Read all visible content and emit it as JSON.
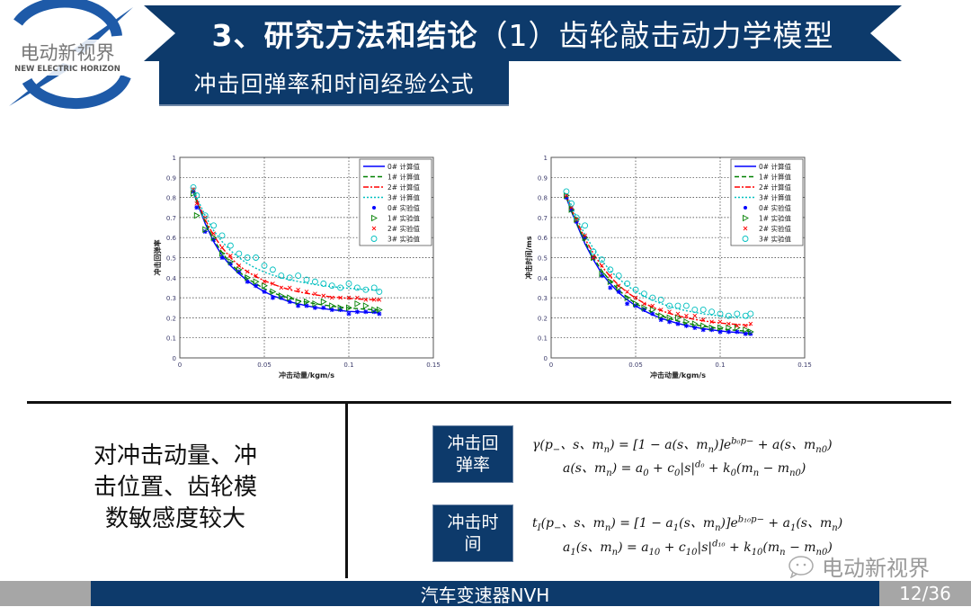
{
  "logo": {
    "cn": "电动新视界",
    "en": "NEW ELECTRIC HORIZON"
  },
  "header": {
    "title_bold": "3、研究方法和结论",
    "title_light": "（1）齿轮敲击动力学模型",
    "subtitle": "冲击回弹率和时间经验公式"
  },
  "colors": {
    "navy": "#0d3a6b",
    "gray": "#a6a6a6",
    "series_0": "#0000ff",
    "series_1": "#008000",
    "series_2": "#ff0000",
    "series_3": "#00bfbf"
  },
  "conclusion": {
    "lines": [
      "对冲击动量、冲",
      "击位置、齿轮模",
      "数敏感度较大"
    ]
  },
  "formulas": {
    "box1_line1": "冲击回",
    "box1_line2": "弹率",
    "box2_line1": "冲击时",
    "box2_line2": "间"
  },
  "watermark": "电动新视界",
  "footer": {
    "title": "汽车变速器NVH",
    "page": "12/36"
  },
  "chart_data": [
    {
      "type": "line",
      "title": "",
      "xlabel": "冲击动量/kgm/s",
      "ylabel": "冲击回弹率",
      "xlim": [
        0,
        0.15
      ],
      "ylim": [
        0,
        1
      ],
      "xticks": [
        "0",
        "0.05",
        "0.1",
        "0.15"
      ],
      "yticks": [
        "0",
        "0.1",
        "0.2",
        "0.3",
        "0.4",
        "0.5",
        "0.6",
        "0.7",
        "0.8",
        "0.9",
        "1"
      ],
      "grid": true,
      "legend_position": "upper right",
      "legend": [
        "0# 计算值",
        "1# 计算值",
        "2# 计算值",
        "3# 计算值",
        "0# 实验值",
        "1# 实验值",
        "2# 实验值",
        "3# 实验值"
      ],
      "x": [
        0.008,
        0.01,
        0.015,
        0.02,
        0.025,
        0.03,
        0.035,
        0.04,
        0.045,
        0.05,
        0.055,
        0.06,
        0.065,
        0.07,
        0.075,
        0.08,
        0.085,
        0.09,
        0.095,
        0.1,
        0.105,
        0.11,
        0.115,
        0.118
      ],
      "series": [
        {
          "name": "0# 计算值",
          "style": "solid",
          "values": [
            0.83,
            0.78,
            0.67,
            0.58,
            0.51,
            0.46,
            0.42,
            0.385,
            0.355,
            0.33,
            0.31,
            0.295,
            0.28,
            0.27,
            0.26,
            0.252,
            0.246,
            0.24,
            0.236,
            0.232,
            0.23,
            0.228,
            0.226,
            0.225
          ]
        },
        {
          "name": "1# 计算值",
          "style": "dashed",
          "values": [
            0.83,
            0.78,
            0.68,
            0.59,
            0.525,
            0.47,
            0.43,
            0.395,
            0.37,
            0.345,
            0.325,
            0.31,
            0.298,
            0.287,
            0.278,
            0.27,
            0.264,
            0.258,
            0.253,
            0.249,
            0.246,
            0.243,
            0.24,
            0.238
          ]
        },
        {
          "name": "2# 计算值",
          "style": "dashdot",
          "values": [
            0.84,
            0.79,
            0.69,
            0.61,
            0.55,
            0.5,
            0.46,
            0.43,
            0.405,
            0.385,
            0.368,
            0.353,
            0.34,
            0.33,
            0.322,
            0.315,
            0.309,
            0.304,
            0.3,
            0.297,
            0.294,
            0.292,
            0.29,
            0.289
          ]
        },
        {
          "name": "3# 计算值",
          "style": "dotted",
          "values": [
            0.85,
            0.8,
            0.71,
            0.635,
            0.58,
            0.535,
            0.5,
            0.47,
            0.447,
            0.428,
            0.413,
            0.4,
            0.39,
            0.381,
            0.373,
            0.366,
            0.36,
            0.355,
            0.351,
            0.347,
            0.344,
            0.341,
            0.338,
            0.336
          ]
        },
        {
          "name": "0# 实验值",
          "style": "marker-star",
          "values": [
            0.83,
            0.75,
            0.63,
            0.59,
            0.5,
            0.47,
            0.43,
            0.38,
            0.36,
            0.33,
            0.3,
            0.3,
            0.28,
            0.26,
            0.26,
            0.25,
            0.25,
            0.24,
            0.24,
            0.22,
            0.23,
            0.23,
            0.23,
            0.22
          ]
        },
        {
          "name": "1# 实验值",
          "style": "marker-triangle",
          "values": [
            0.82,
            0.71,
            0.64,
            0.6,
            0.52,
            0.48,
            0.44,
            0.4,
            0.38,
            0.36,
            0.33,
            0.31,
            0.3,
            0.28,
            0.28,
            0.27,
            0.28,
            0.26,
            0.25,
            0.25,
            0.27,
            0.26,
            0.24,
            0.24
          ]
        },
        {
          "name": "2# 实验值",
          "style": "marker-x",
          "values": [
            0.84,
            0.77,
            0.7,
            0.62,
            0.55,
            0.51,
            0.46,
            0.43,
            0.41,
            0.38,
            0.37,
            0.35,
            0.35,
            0.34,
            0.33,
            0.32,
            0.31,
            0.3,
            0.3,
            0.3,
            0.3,
            0.29,
            0.29,
            0.29
          ]
        },
        {
          "name": "3# 实验值",
          "style": "marker-circle",
          "values": [
            0.85,
            0.81,
            0.71,
            0.66,
            0.61,
            0.56,
            0.52,
            0.5,
            0.5,
            0.46,
            0.44,
            0.41,
            0.4,
            0.41,
            0.39,
            0.38,
            0.37,
            0.36,
            0.35,
            0.37,
            0.35,
            0.34,
            0.35,
            0.33
          ]
        }
      ]
    },
    {
      "type": "line",
      "title": "",
      "xlabel": "冲击动量/kgm/s",
      "ylabel": "冲击时间/ms",
      "xlim": [
        0,
        0.15
      ],
      "ylim": [
        0,
        1
      ],
      "xticks": [
        "0",
        "0.05",
        "0.1",
        "0.15"
      ],
      "yticks": [
        "0",
        "0.1",
        "0.2",
        "0.3",
        "0.4",
        "0.5",
        "0.6",
        "0.7",
        "0.8",
        "0.9",
        "1"
      ],
      "grid": true,
      "legend_position": "upper right",
      "legend": [
        "0# 计算值",
        "1# 计算值",
        "2# 计算值",
        "3# 计算值",
        "0# 实验值",
        "1# 实验值",
        "2# 实验值",
        "3# 实验值"
      ],
      "x": [
        0.009,
        0.012,
        0.015,
        0.02,
        0.025,
        0.03,
        0.035,
        0.04,
        0.045,
        0.05,
        0.055,
        0.06,
        0.065,
        0.07,
        0.075,
        0.08,
        0.085,
        0.09,
        0.095,
        0.1,
        0.105,
        0.11,
        0.115,
        0.118
      ],
      "series": [
        {
          "name": "0# 计算值",
          "style": "solid",
          "values": [
            0.8,
            0.73,
            0.67,
            0.57,
            0.49,
            0.42,
            0.37,
            0.325,
            0.29,
            0.26,
            0.235,
            0.215,
            0.198,
            0.184,
            0.172,
            0.162,
            0.153,
            0.146,
            0.14,
            0.135,
            0.13,
            0.127,
            0.124,
            0.122
          ]
        },
        {
          "name": "1# 计算值",
          "style": "dashed",
          "values": [
            0.8,
            0.735,
            0.675,
            0.58,
            0.5,
            0.435,
            0.383,
            0.338,
            0.302,
            0.272,
            0.247,
            0.227,
            0.21,
            0.196,
            0.184,
            0.174,
            0.165,
            0.158,
            0.152,
            0.146,
            0.141,
            0.137,
            0.134,
            0.132
          ]
        },
        {
          "name": "2# 计算值",
          "style": "dashdot",
          "values": [
            0.81,
            0.745,
            0.685,
            0.595,
            0.52,
            0.457,
            0.405,
            0.362,
            0.327,
            0.298,
            0.273,
            0.253,
            0.236,
            0.222,
            0.21,
            0.2,
            0.192,
            0.185,
            0.179,
            0.174,
            0.17,
            0.167,
            0.164,
            0.163
          ]
        },
        {
          "name": "3# 计算值",
          "style": "dotted",
          "values": [
            0.82,
            0.76,
            0.7,
            0.615,
            0.545,
            0.485,
            0.435,
            0.395,
            0.36,
            0.332,
            0.308,
            0.288,
            0.271,
            0.257,
            0.245,
            0.235,
            0.227,
            0.22,
            0.214,
            0.209,
            0.205,
            0.202,
            0.2,
            0.199
          ]
        },
        {
          "name": "0# 实验值",
          "style": "marker-star",
          "values": [
            0.8,
            0.74,
            0.68,
            0.6,
            0.5,
            0.41,
            0.35,
            0.33,
            0.27,
            0.26,
            0.24,
            0.22,
            0.19,
            0.18,
            0.17,
            0.16,
            0.15,
            0.14,
            0.14,
            0.13,
            0.13,
            0.13,
            0.12,
            0.12
          ]
        },
        {
          "name": "1# 实验值",
          "style": "marker-triangle",
          "values": [
            0.81,
            0.74,
            0.69,
            0.6,
            0.5,
            0.42,
            0.38,
            0.35,
            0.3,
            0.27,
            0.25,
            0.24,
            0.21,
            0.2,
            0.2,
            0.18,
            0.17,
            0.16,
            0.15,
            0.15,
            0.15,
            0.15,
            0.14,
            0.13
          ]
        },
        {
          "name": "2# 实验值",
          "style": "marker-x",
          "values": [
            0.81,
            0.75,
            0.69,
            0.61,
            0.5,
            0.46,
            0.41,
            0.36,
            0.33,
            0.3,
            0.27,
            0.26,
            0.24,
            0.23,
            0.22,
            0.21,
            0.21,
            0.19,
            0.18,
            0.18,
            0.17,
            0.16,
            0.16,
            0.17
          ]
        },
        {
          "name": "3# 实验值",
          "style": "marker-circle",
          "values": [
            0.83,
            0.77,
            0.7,
            0.66,
            0.53,
            0.49,
            0.44,
            0.41,
            0.37,
            0.34,
            0.32,
            0.3,
            0.29,
            0.26,
            0.26,
            0.26,
            0.24,
            0.24,
            0.23,
            0.22,
            0.21,
            0.22,
            0.21,
            0.22
          ]
        }
      ]
    }
  ]
}
